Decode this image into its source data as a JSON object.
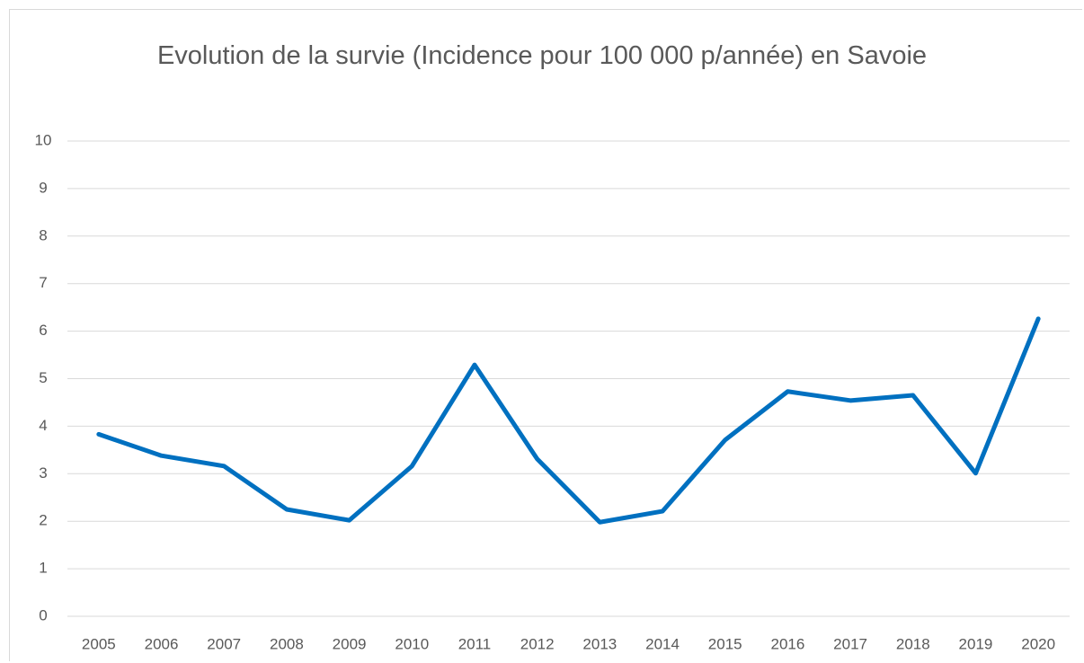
{
  "chart_data": {
    "type": "line",
    "title": "Evolution de la survie (Incidence pour 100 000 p/année) en Savoie",
    "categories": [
      "2005",
      "2006",
      "2007",
      "2008",
      "2009",
      "2010",
      "2011",
      "2012",
      "2013",
      "2014",
      "2015",
      "2016",
      "2017",
      "2018",
      "2019",
      "2020"
    ],
    "series": [
      {
        "color": "#0070c0",
        "values": [
          3.83,
          3.38,
          3.16,
          2.25,
          2.02,
          3.16,
          5.29,
          3.31,
          1.98,
          2.21,
          3.71,
          4.73,
          4.54,
          4.65,
          3.01,
          6.26
        ]
      }
    ],
    "ylim": [
      0,
      10
    ],
    "yticks": [
      0,
      1,
      2,
      3,
      4,
      5,
      6,
      7,
      8,
      9,
      10
    ],
    "grid": true
  }
}
